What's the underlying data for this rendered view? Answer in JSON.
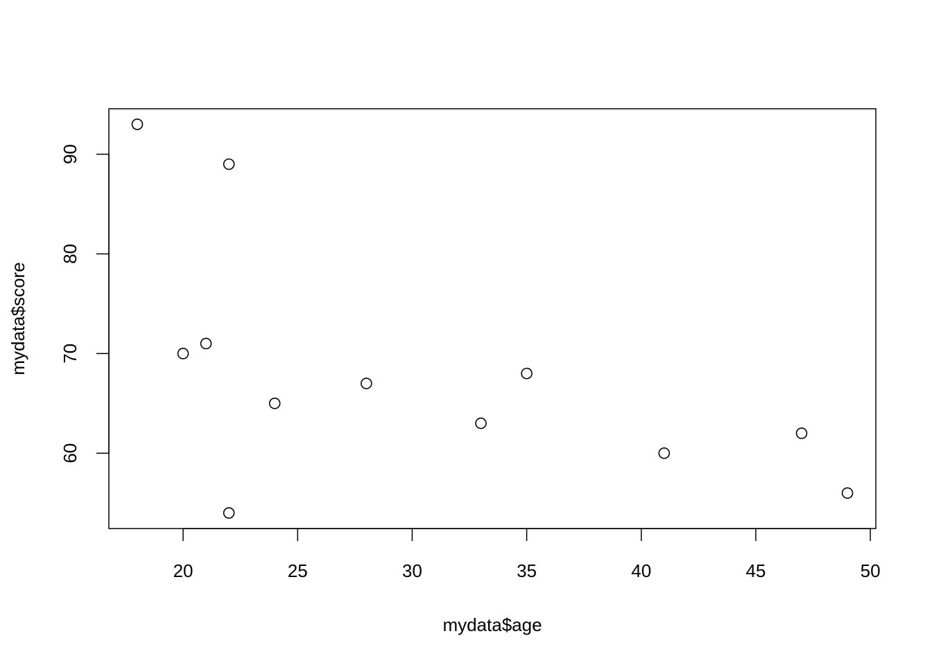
{
  "chart_data": {
    "type": "scatter",
    "title": "",
    "xlabel": "mydata$age",
    "ylabel": "mydata$score",
    "xlim": [
      16.76,
      50.24
    ],
    "ylim": [
      52.44,
      94.56
    ],
    "xticks": [
      20,
      25,
      30,
      35,
      40,
      45,
      50
    ],
    "yticks": [
      60,
      70,
      80,
      90
    ],
    "grid": false,
    "marker": "open-circle",
    "points": [
      {
        "x": 18,
        "y": 93
      },
      {
        "x": 22,
        "y": 89
      },
      {
        "x": 20,
        "y": 70
      },
      {
        "x": 21,
        "y": 71
      },
      {
        "x": 24,
        "y": 65
      },
      {
        "x": 28,
        "y": 67
      },
      {
        "x": 33,
        "y": 63
      },
      {
        "x": 35,
        "y": 68
      },
      {
        "x": 41,
        "y": 60
      },
      {
        "x": 47,
        "y": 62
      },
      {
        "x": 49,
        "y": 56
      },
      {
        "x": 22,
        "y": 54
      }
    ]
  }
}
